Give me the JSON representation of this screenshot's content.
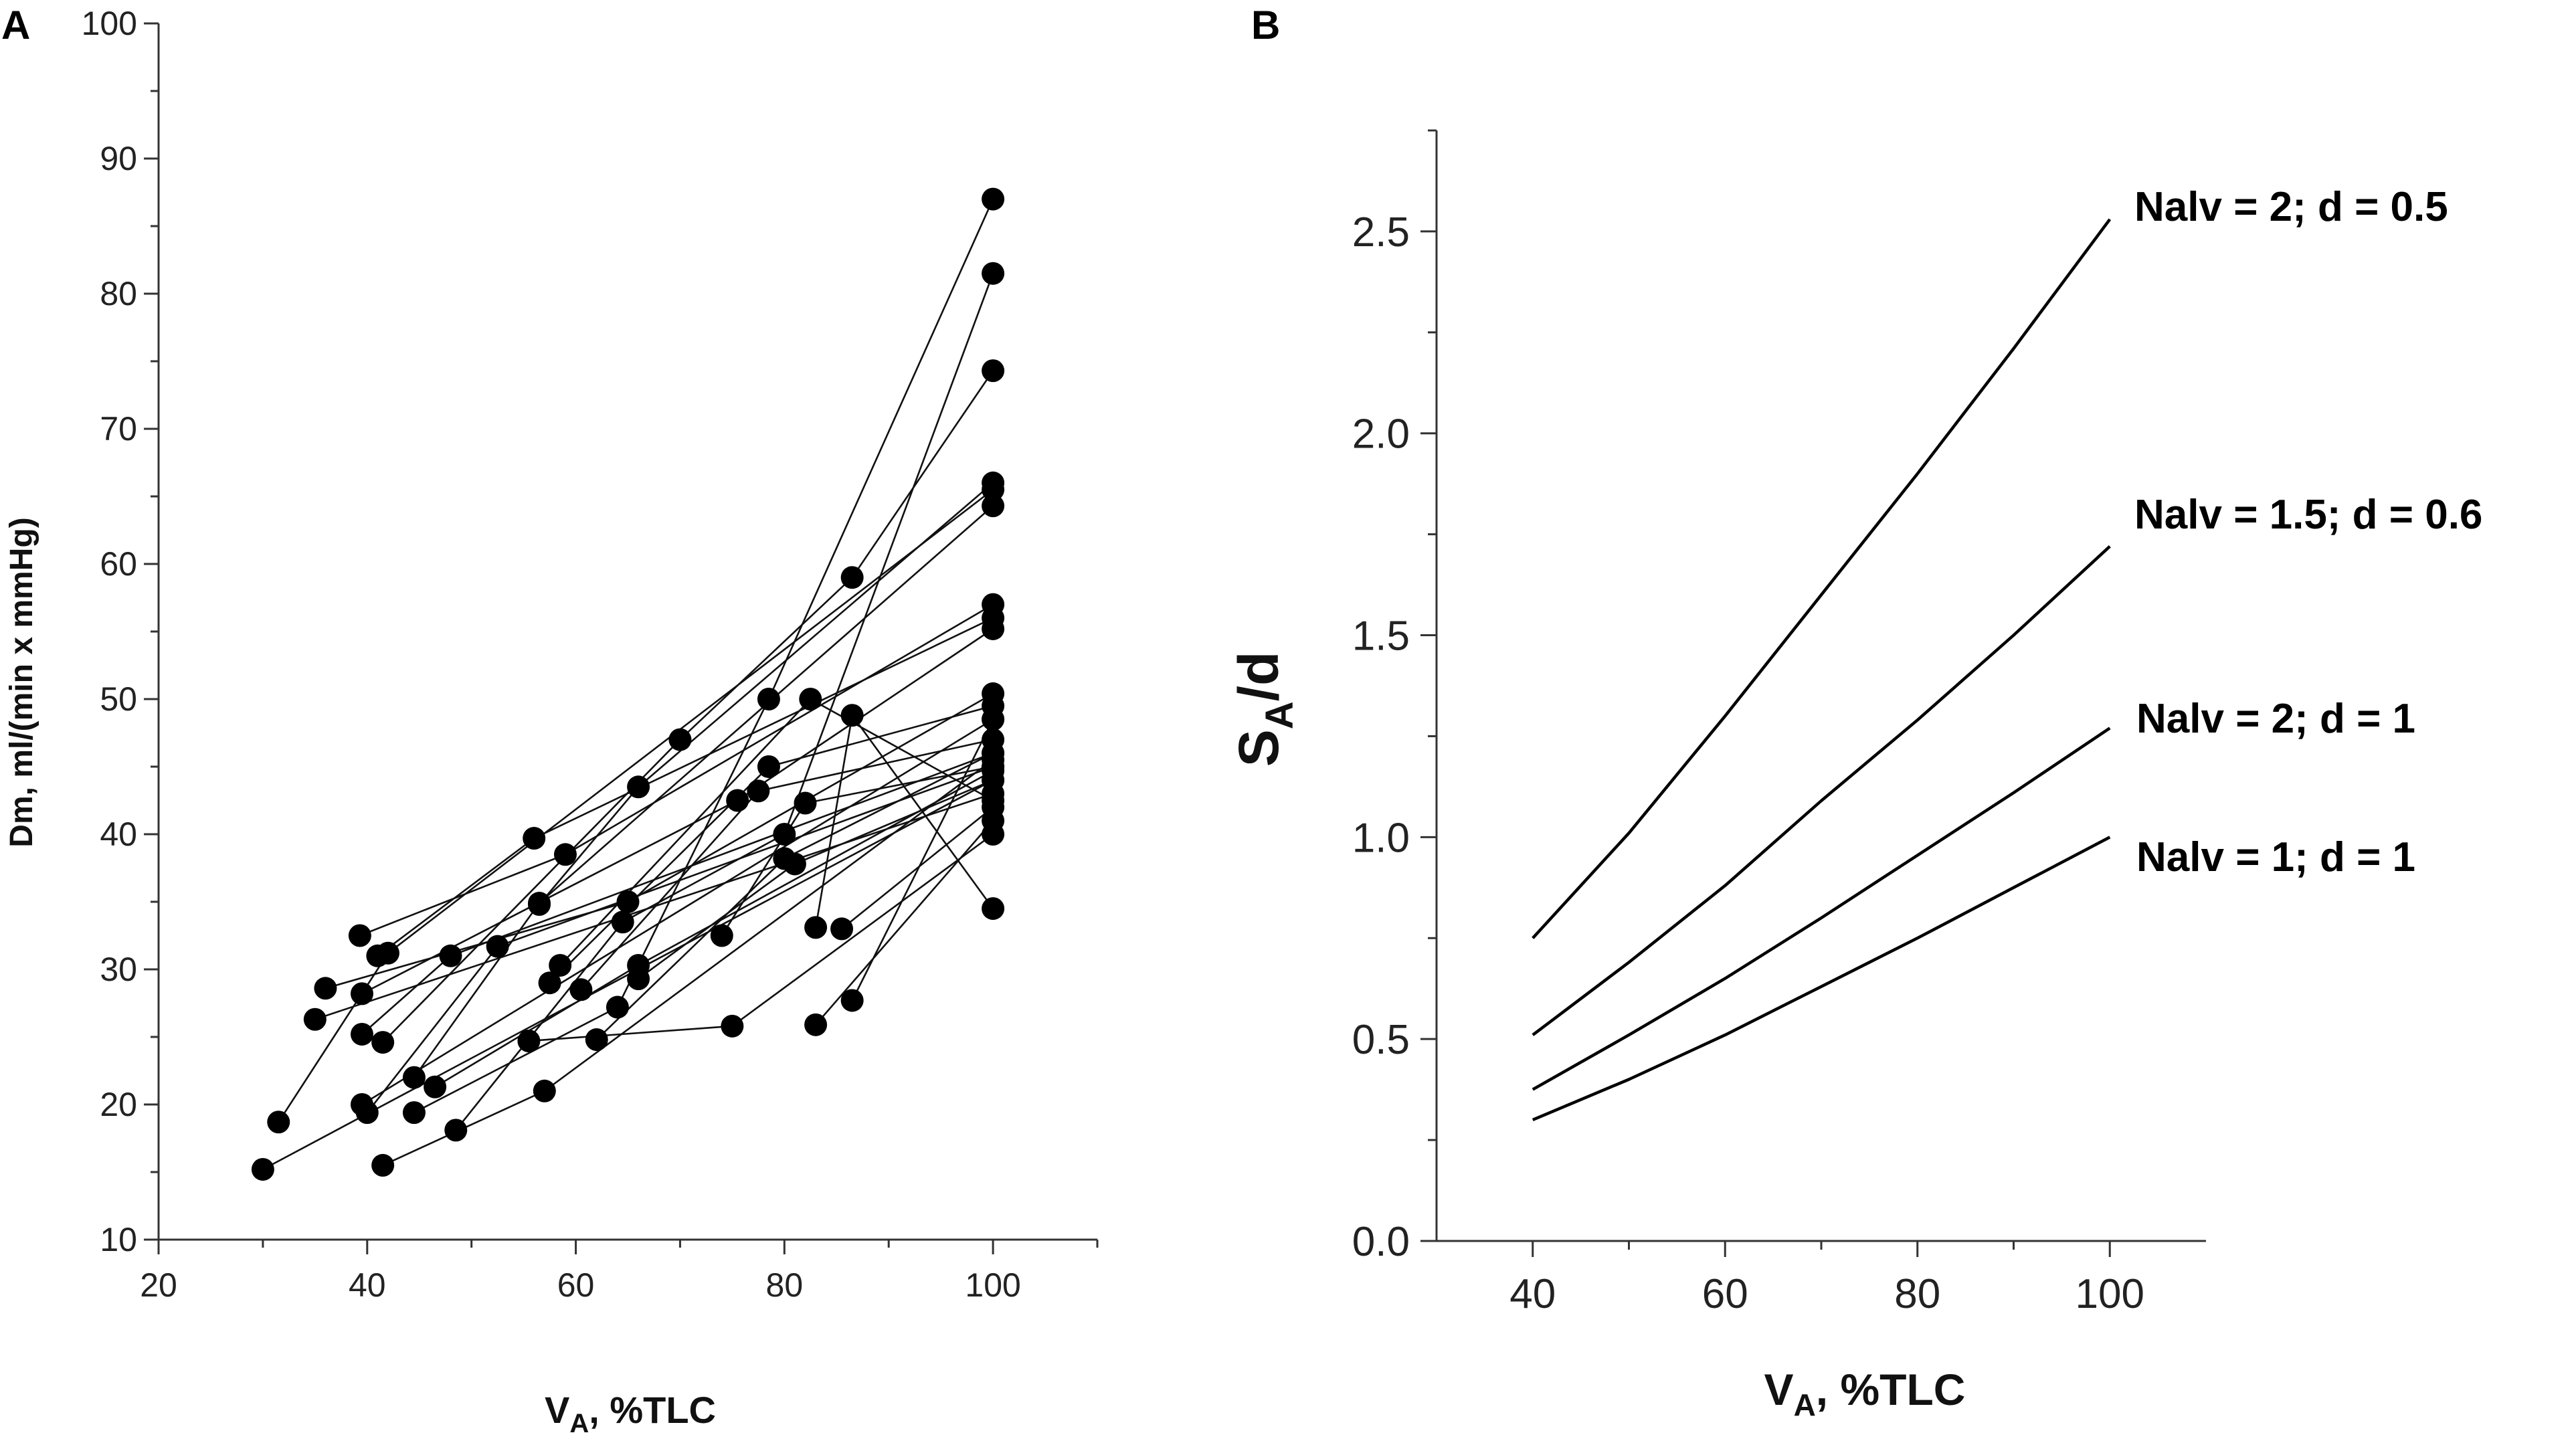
{
  "chart_data": [
    {
      "panel": "A",
      "type": "scatter",
      "xlabel_main": "V",
      "xlabel_sub": "A",
      "xlabel_rest": ", %TLC",
      "ylabel": "Dm, ml/(min x mmHg)",
      "xlim": [
        20,
        110
      ],
      "ylim": [
        10,
        100
      ],
      "xticks": [
        "20",
        "40",
        "60",
        "80",
        "100"
      ],
      "yticks": [
        "10",
        "20",
        "30",
        "40",
        "50",
        "60",
        "70",
        "80",
        "90",
        "100"
      ],
      "series": [
        {
          "x": [
            30,
            100
          ],
          "y": [
            15.2,
            44
          ]
        },
        {
          "x": [
            31.5,
            42,
            100
          ],
          "y": [
            18.7,
            31.2,
            65.5
          ]
        },
        {
          "x": [
            35,
            100
          ],
          "y": [
            26.3,
            43
          ]
        },
        {
          "x": [
            36,
            65,
            100
          ],
          "y": [
            28.6,
            35,
            50.4
          ]
        },
        {
          "x": [
            39.5,
            48,
            100
          ],
          "y": [
            25.2,
            31,
            46
          ]
        },
        {
          "x": [
            39.3,
            59,
            100
          ],
          "y": [
            32.5,
            38.5,
            57
          ]
        },
        {
          "x": [
            39.5,
            75.5,
            100
          ],
          "y": [
            28.2,
            42.5,
            55.2
          ]
        },
        {
          "x": [
            39.5,
            100
          ],
          "y": [
            20,
            48.5
          ]
        },
        {
          "x": [
            40,
            52.5,
            100
          ],
          "y": [
            19.4,
            31.7,
            45
          ]
        },
        {
          "x": [
            41,
            56,
            100
          ],
          "y": [
            31,
            39.7,
            56
          ]
        },
        {
          "x": [
            41.5,
            70,
            86.5,
            100
          ],
          "y": [
            24.6,
            47,
            59,
            74.3
          ]
        },
        {
          "x": [
            44.5,
            56.5,
            100
          ],
          "y": [
            22,
            34.9,
            64.3
          ]
        },
        {
          "x": [
            44.5,
            64,
            78.5,
            100
          ],
          "y": [
            19.4,
            27.2,
            50,
            87
          ]
        },
        {
          "x": [
            46.5,
            66,
            100
          ],
          "y": [
            21.3,
            30.3,
            44.7
          ]
        },
        {
          "x": [
            48.5,
            64.5,
            80,
            100
          ],
          "y": [
            18.1,
            33.5,
            40,
            81.5
          ]
        },
        {
          "x": [
            41.5,
            57,
            100
          ],
          "y": [
            15.5,
            21,
            45.5
          ]
        },
        {
          "x": [
            55.5,
            75,
            100
          ],
          "y": [
            24.7,
            25.8,
            40
          ]
        },
        {
          "x": [
            56.5,
            66,
            100
          ],
          "y": [
            34.8,
            43.5,
            66
          ]
        },
        {
          "x": [
            57.5,
            78.5,
            100
          ],
          "y": [
            29,
            45,
            49.5
          ]
        },
        {
          "x": [
            58.5,
            82.5,
            100
          ],
          "y": [
            30.3,
            50,
            42.5
          ]
        },
        {
          "x": [
            60.5,
            77.5,
            100
          ],
          "y": [
            28.5,
            43.2,
            47
          ]
        },
        {
          "x": [
            62,
            80,
            100
          ],
          "y": [
            24.8,
            38.2,
            46
          ]
        },
        {
          "x": [
            66,
            81,
            100
          ],
          "y": [
            29.3,
            37.8,
            44
          ]
        },
        {
          "x": [
            74,
            82,
            100
          ],
          "y": [
            32.5,
            42.3,
            45
          ]
        },
        {
          "x": [
            83,
            100
          ],
          "y": [
            25.9,
            41
          ]
        },
        {
          "x": [
            83,
            86.5,
            100
          ],
          "y": [
            33.1,
            48.8,
            34.5
          ]
        },
        {
          "x": [
            85.5,
            100
          ],
          "y": [
            33,
            42
          ]
        },
        {
          "x": [
            86.5,
            100
          ],
          "y": [
            27.7,
            48.5
          ]
        }
      ]
    },
    {
      "panel": "B",
      "type": "line",
      "xlabel_main": "V",
      "xlabel_sub": "A",
      "xlabel_rest": ", %TLC",
      "ylabel_main": "S",
      "ylabel_sub": "A",
      "ylabel_rest": "/d",
      "xlim": [
        30,
        110
      ],
      "ylim": [
        0,
        2.75
      ],
      "xticks": [
        "40",
        "60",
        "80",
        "100"
      ],
      "yticks": [
        "0.0",
        "0.5",
        "1.0",
        "1.5",
        "2.0",
        "2.5"
      ],
      "series": [
        {
          "name": "Nalv = 2; d = 0.5",
          "x": [
            40,
            50,
            60,
            70,
            80,
            90,
            100
          ],
          "y": [
            0.75,
            1.01,
            1.3,
            1.6,
            1.9,
            2.21,
            2.53
          ]
        },
        {
          "name": "Nalv = 1.5; d = 0.6",
          "x": [
            40,
            50,
            60,
            70,
            80,
            90,
            100
          ],
          "y": [
            0.51,
            0.69,
            0.88,
            1.09,
            1.29,
            1.5,
            1.72
          ]
        },
        {
          "name": "Nalv = 2; d = 1",
          "x": [
            40,
            50,
            60,
            70,
            80,
            90,
            100
          ],
          "y": [
            0.375,
            0.51,
            0.65,
            0.8,
            0.955,
            1.11,
            1.27
          ]
        },
        {
          "name": "Nalv = 1; d = 1",
          "x": [
            40,
            50,
            60,
            70,
            80,
            90,
            100
          ],
          "y": [
            0.3,
            0.4,
            0.51,
            0.63,
            0.75,
            0.875,
            1.0
          ]
        }
      ]
    }
  ]
}
